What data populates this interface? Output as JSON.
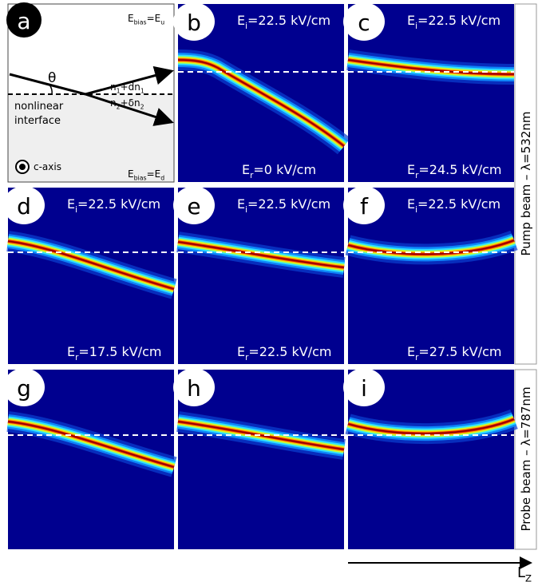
{
  "figure": {
    "panels": [
      {
        "letter": "a"
      },
      {
        "letter": "b",
        "top": [
          {
            "text": "E"
          },
          {
            "text": "i",
            "sub": true
          },
          {
            "text": "=22.5 kV/cm"
          }
        ],
        "bottom": [
          {
            "text": "E"
          },
          {
            "text": "r",
            "sub": true
          },
          {
            "text": "=0 kV/cm"
          }
        ]
      },
      {
        "letter": "c",
        "top": [
          {
            "text": "E"
          },
          {
            "text": "i",
            "sub": true
          },
          {
            "text": "=22.5 kV/cm"
          }
        ],
        "bottom": [
          {
            "text": "E"
          },
          {
            "text": "r",
            "sub": true
          },
          {
            "text": "=24.5 kV/cm"
          }
        ]
      },
      {
        "letter": "d",
        "top": [
          {
            "text": "E"
          },
          {
            "text": "i",
            "sub": true
          },
          {
            "text": "=22.5 kV/cm"
          }
        ],
        "bottom": [
          {
            "text": "E"
          },
          {
            "text": "r",
            "sub": true
          },
          {
            "text": "=17.5 kV/cm"
          }
        ]
      },
      {
        "letter": "e",
        "top": [
          {
            "text": "E"
          },
          {
            "text": "i",
            "sub": true
          },
          {
            "text": "=22.5 kV/cm"
          }
        ],
        "bottom": [
          {
            "text": "E"
          },
          {
            "text": "r",
            "sub": true
          },
          {
            "text": "=22.5 kV/cm"
          }
        ]
      },
      {
        "letter": "f",
        "top": [
          {
            "text": "E"
          },
          {
            "text": "i",
            "sub": true
          },
          {
            "text": "=22.5 kV/cm"
          }
        ],
        "bottom": [
          {
            "text": "E"
          },
          {
            "text": "r",
            "sub": true
          },
          {
            "text": "=27.5 kV/cm"
          }
        ]
      },
      {
        "letter": "g"
      },
      {
        "letter": "h"
      },
      {
        "letter": "i"
      }
    ],
    "diagram": {
      "bias_top": [
        {
          "text": "E"
        },
        {
          "text": "bias",
          "sub": true
        },
        {
          "text": "=E"
        },
        {
          "text": "u",
          "sub": true
        }
      ],
      "bias_bottom": [
        {
          "text": "E"
        },
        {
          "text": "bias",
          "sub": true
        },
        {
          "text": "=E"
        },
        {
          "text": "d",
          "sub": true
        }
      ],
      "n_upper": [
        {
          "text": "n"
        },
        {
          "text": "1",
          "sub": true
        },
        {
          "text": "+dn"
        },
        {
          "text": "1",
          "sub": true
        }
      ],
      "n_lower": [
        {
          "text": "n"
        },
        {
          "text": "2",
          "sub": true
        },
        {
          "text": "+δn"
        },
        {
          "text": "2",
          "sub": true
        }
      ],
      "angle": [
        {
          "text": "θ"
        }
      ],
      "interface_1": [
        {
          "text": "nonlinear"
        }
      ],
      "interface_2": [
        {
          "text": "interface"
        }
      ],
      "axis": [
        {
          "text": "c-axis"
        }
      ]
    },
    "side_labels": [
      "Pump beam – λ=532nm",
      "Probe beam – λ=787nm"
    ],
    "axis_label": [
      {
        "text": "L"
      },
      {
        "text": "Z",
        "sub": true
      }
    ]
  }
}
